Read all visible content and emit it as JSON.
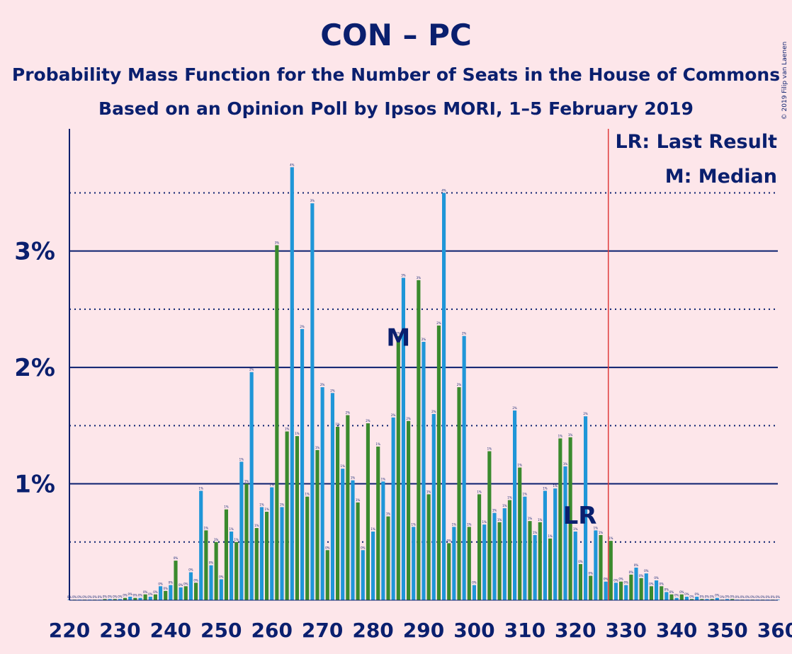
{
  "chart_data": {
    "type": "bar",
    "title": "CON – PC",
    "subtitle_1": "Probability Mass Function for the Number of Seats in the House of Commons",
    "subtitle_2": "Based on an Opinion Poll by Ipsos MORI, 1–5 February 2019",
    "copyright": "© 2019 Filip van Laenen",
    "legend": [
      {
        "key": "LR",
        "text": "LR: Last Result"
      },
      {
        "key": "M",
        "text": "M: Median"
      }
    ],
    "legend_position": "top-right",
    "xlim": [
      220,
      360
    ],
    "ylim": [
      0,
      4.05
    ],
    "y_unit": "%",
    "y_ticks": [
      {
        "value": 1,
        "label": "1%"
      },
      {
        "value": 2,
        "label": "2%"
      },
      {
        "value": 3,
        "label": "3%"
      }
    ],
    "x_ticks": [
      220,
      230,
      240,
      250,
      260,
      270,
      280,
      290,
      300,
      310,
      320,
      330,
      340,
      350,
      360
    ],
    "majority_line": 326,
    "last_result": {
      "seat": 322,
      "label": "LR"
    },
    "median": {
      "seat": 285,
      "label": "M"
    },
    "colors": {
      "background": "#fde6ea",
      "blue": "#1f96d8",
      "green": "#3a8a2d",
      "axis": "#0a1f6e",
      "majority": "#e03c3c"
    },
    "seats": [
      220,
      221,
      222,
      223,
      224,
      225,
      226,
      227,
      228,
      229,
      230,
      231,
      232,
      233,
      234,
      235,
      236,
      237,
      238,
      239,
      240,
      241,
      242,
      243,
      244,
      245,
      246,
      247,
      248,
      249,
      250,
      251,
      252,
      253,
      254,
      255,
      256,
      257,
      258,
      259,
      260,
      261,
      262,
      263,
      264,
      265,
      266,
      267,
      268,
      269,
      270,
      271,
      272,
      273,
      274,
      275,
      276,
      277,
      278,
      279,
      280,
      281,
      282,
      283,
      284,
      285,
      286,
      287,
      288,
      289,
      290,
      291,
      292,
      293,
      294,
      295,
      296,
      297,
      298,
      299,
      300,
      301,
      302,
      303,
      304,
      305,
      306,
      307,
      308,
      309,
      310,
      311,
      312,
      313,
      314,
      315,
      316,
      317,
      318,
      319,
      320,
      321,
      322,
      323,
      324,
      325,
      326,
      327,
      328,
      329,
      330,
      331,
      332,
      333,
      334,
      335,
      336,
      337,
      338,
      339,
      340,
      341,
      342,
      343,
      344,
      345,
      346,
      347,
      348,
      349,
      350,
      351,
      352,
      353,
      354,
      355,
      356,
      357,
      358,
      359,
      360
    ],
    "values": [
      0.005,
      0.005,
      0.005,
      0.005,
      0.005,
      0.005,
      0.005,
      0.01,
      0.01,
      0.01,
      0.01,
      0.02,
      0.03,
      0.02,
      0.02,
      0.05,
      0.03,
      0.05,
      0.12,
      0.08,
      0.13,
      0.34,
      0.11,
      0.12,
      0.24,
      0.15,
      0.94,
      0.6,
      0.3,
      0.5,
      0.18,
      0.78,
      0.59,
      0.5,
      1.19,
      1.0,
      1.96,
      0.62,
      0.8,
      0.76,
      0.97,
      3.05,
      0.8,
      1.45,
      3.72,
      1.41,
      2.33,
      0.89,
      3.41,
      1.29,
      1.83,
      0.43,
      1.78,
      1.49,
      1.13,
      1.59,
      1.03,
      0.84,
      0.43,
      1.52,
      0.59,
      1.32,
      1.02,
      0.72,
      1.57,
      2.27,
      2.77,
      1.54,
      0.63,
      2.75,
      2.22,
      0.91,
      1.6,
      2.36,
      3.5,
      0.49,
      0.63,
      1.83,
      2.27,
      0.63,
      0.13,
      0.91,
      0.65,
      1.28,
      0.75,
      0.67,
      0.79,
      0.86,
      1.63,
      1.14,
      0.89,
      0.68,
      0.56,
      0.67,
      0.94,
      0.53,
      0.96,
      1.39,
      1.15,
      1.4,
      0.59,
      0.31,
      1.58,
      0.21,
      0.6,
      0.56,
      0.16,
      0.51,
      0.15,
      0.16,
      0.13,
      0.22,
      0.28,
      0.19,
      0.23,
      0.12,
      0.17,
      0.12,
      0.07,
      0.05,
      0.02,
      0.05,
      0.03,
      0.01,
      0.03,
      0.01,
      0.01,
      0.01,
      0.02,
      0.005,
      0.01,
      0.01,
      0.005,
      0.005,
      0.005,
      0.005,
      0.005,
      0.005,
      0.005,
      0.005,
      0.005
    ]
  }
}
